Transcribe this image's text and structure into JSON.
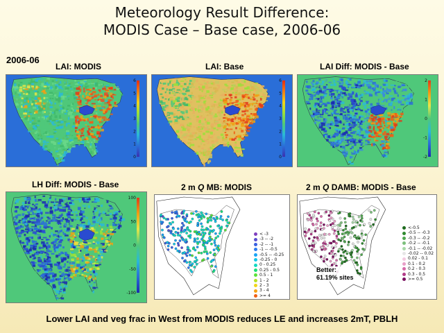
{
  "slide": {
    "title_line1": "Meteorology Result Difference:",
    "title_line2": "MODIS Case – Base case, 2006-06",
    "date_label": "2006-06",
    "caption": "Lower LAI and veg frac in West from MODIS reduces LE and increases 2mT, PBLH"
  },
  "panels": [
    {
      "id": "lai-modis",
      "title": "LAI: MODIS",
      "scale": [
        "6",
        "5",
        "4",
        "3",
        "2",
        "1",
        "0"
      ]
    },
    {
      "id": "lai-base",
      "title": "LAI: Base",
      "scale": [
        "6",
        "5",
        "4",
        "3",
        "2",
        "1",
        "0"
      ]
    },
    {
      "id": "lai-diff",
      "title": "LAI Diff: MODIS - Base",
      "scale": [
        "2",
        "1",
        "0",
        "-1",
        "-2"
      ]
    },
    {
      "id": "lh-diff",
      "title": "LH Diff: MODIS - Base",
      "scale": [
        "100",
        "50",
        "0",
        "-50",
        "-100"
      ]
    },
    {
      "id": "q-mb",
      "title_prefix": "2 m ",
      "title_italic": "Q",
      "title_suffix": " MB: MODIS"
    },
    {
      "id": "q-damb",
      "title_prefix": "2 m ",
      "title_italic": "Q",
      "title_suffix": " DAMB: MODIS - Base"
    }
  ],
  "legend_mb": [
    {
      "label": "< -3",
      "color": "#7f3fbf"
    },
    {
      "label": "-3 -- -2",
      "color": "#5a4fcf"
    },
    {
      "label": "-2 -- -1",
      "color": "#3a5fe0"
    },
    {
      "label": "-1 -- -0.5",
      "color": "#2c7bf0"
    },
    {
      "label": "-0.5 -- -0.25",
      "color": "#19a3f5"
    },
    {
      "label": "-0.25 - 0",
      "color": "#13c6e8"
    },
    {
      "label": "0 - 0.25",
      "color": "#12d9c2"
    },
    {
      "label": "0.25 - 0.5",
      "color": "#1ce07a"
    },
    {
      "label": "0.5 - 1",
      "color": "#5be23a"
    },
    {
      "label": "1 - 2",
      "color": "#b8e224"
    },
    {
      "label": "2 - 3",
      "color": "#f0d51a"
    },
    {
      "label": "3 - 4",
      "color": "#f5a314"
    },
    {
      "label": ">= 4",
      "color": "#f06014"
    }
  ],
  "legend_damb": [
    {
      "label": "<-0.5",
      "color": "#1e6b1e"
    },
    {
      "label": "-0.5 -- -0.3",
      "color": "#2f8a2f"
    },
    {
      "label": "-0.3 -- -0.2",
      "color": "#4ea64e"
    },
    {
      "label": "-0.2 -- -0.1",
      "color": "#7cc07c"
    },
    {
      "label": "-0.1 -- -0.02",
      "color": "#a8d8a8"
    },
    {
      "label": "-0.02 -- 0.02",
      "color": "#e6e6e6"
    },
    {
      "label": "0.02 - 0.1",
      "color": "#f3c9e0"
    },
    {
      "label": "0.1 - 0.2",
      "color": "#e89fc8"
    },
    {
      "label": "0.2 - 0.3",
      "color": "#d66aa8"
    },
    {
      "label": "0.3 - 0.5",
      "color": "#b23c88"
    },
    {
      "label": ">= 0.5",
      "color": "#7a1060"
    }
  ],
  "better_note": {
    "line1": "Better:",
    "line2": "61.19% sites"
  },
  "colors": {
    "background": "#fbf3d0",
    "map_ocean": "#2a6ed8",
    "map_land": "#4fc87a",
    "hot": "#e23a1a"
  }
}
